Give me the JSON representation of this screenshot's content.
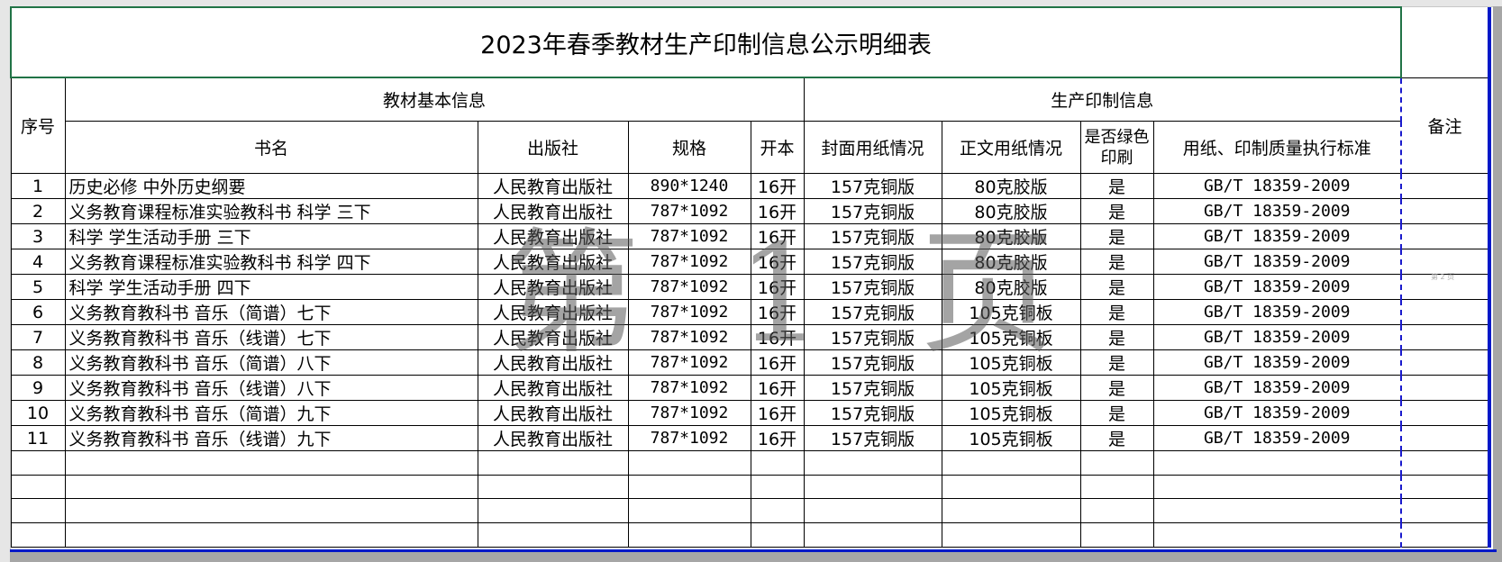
{
  "title": "2023年春季教材生产印制信息公示明细表",
  "headers": {
    "seq": "序号",
    "group_basic": "教材基本信息",
    "group_print": "生产印制信息",
    "remark": "备注",
    "book_name": "书名",
    "publisher": "出版社",
    "spec": "规格",
    "format": "开本",
    "cover_paper": "封面用纸情况",
    "body_paper": "正文用纸情况",
    "green_print": "是否绿色印刷",
    "standard": "用纸、印制质量执行标准"
  },
  "rows": [
    {
      "no": "1",
      "name": "历史必修 中外历史纲要",
      "publisher": "人民教育出版社",
      "spec": "890*1240",
      "format": "16开",
      "cover": "157克铜版",
      "body": "80克胶版",
      "green": "是",
      "standard": "GB/T 18359-2009"
    },
    {
      "no": "2",
      "name": "义务教育课程标准实验教科书 科学 三下",
      "publisher": "人民教育出版社",
      "spec": "787*1092",
      "format": "16开",
      "cover": "157克铜版",
      "body": "80克胶版",
      "green": "是",
      "standard": "GB/T 18359-2009"
    },
    {
      "no": "3",
      "name": "科学 学生活动手册 三下",
      "publisher": "人民教育出版社",
      "spec": "787*1092",
      "format": "16开",
      "cover": "157克铜版",
      "body": "80克胶版",
      "green": "是",
      "standard": "GB/T 18359-2009"
    },
    {
      "no": "4",
      "name": "义务教育课程标准实验教科书 科学 四下",
      "publisher": "人民教育出版社",
      "spec": "787*1092",
      "format": "16开",
      "cover": "157克铜版",
      "body": "80克胶版",
      "green": "是",
      "standard": "GB/T 18359-2009"
    },
    {
      "no": "5",
      "name": "科学 学生活动手册 四下",
      "publisher": "人民教育出版社",
      "spec": "787*1092",
      "format": "16开",
      "cover": "157克铜版",
      "body": "80克胶版",
      "green": "是",
      "standard": "GB/T 18359-2009"
    },
    {
      "no": "6",
      "name": "义务教育教科书 音乐（简谱）七下",
      "publisher": "人民教育出版社",
      "spec": "787*1092",
      "format": "16开",
      "cover": "157克铜版",
      "body": "105克铜板",
      "green": "是",
      "standard": "GB/T 18359-2009"
    },
    {
      "no": "7",
      "name": "义务教育教科书 音乐（线谱）七下",
      "publisher": "人民教育出版社",
      "spec": "787*1092",
      "format": "16开",
      "cover": "157克铜版",
      "body": "105克铜板",
      "green": "是",
      "standard": "GB/T 18359-2009"
    },
    {
      "no": "8",
      "name": "义务教育教科书 音乐（简谱）八下",
      "publisher": "人民教育出版社",
      "spec": "787*1092",
      "format": "16开",
      "cover": "157克铜版",
      "body": "105克铜板",
      "green": "是",
      "standard": "GB/T 18359-2009"
    },
    {
      "no": "9",
      "name": "义务教育教科书 音乐（线谱）八下",
      "publisher": "人民教育出版社",
      "spec": "787*1092",
      "format": "16开",
      "cover": "157克铜版",
      "body": "105克铜板",
      "green": "是",
      "standard": "GB/T 18359-2009"
    },
    {
      "no": "10",
      "name": "义务教育教科书 音乐（简谱）九下",
      "publisher": "人民教育出版社",
      "spec": "787*1092",
      "format": "16开",
      "cover": "157克铜版",
      "body": "105克铜板",
      "green": "是",
      "standard": "GB/T 18359-2009"
    },
    {
      "no": "11",
      "name": "义务教育教科书 音乐（线谱）九下",
      "publisher": "人民教育出版社",
      "spec": "787*1092",
      "format": "16开",
      "cover": "157克铜版",
      "body": "105克铜板",
      "green": "是",
      "standard": "GB/T 18359-2009"
    }
  ],
  "empty_rows": 4,
  "watermark_page1": "第 1 页",
  "watermark_page2": "第 2 页",
  "colors": {
    "selection": "#217346",
    "page_break": "#1a1acc",
    "print_area": "#0018c8"
  }
}
